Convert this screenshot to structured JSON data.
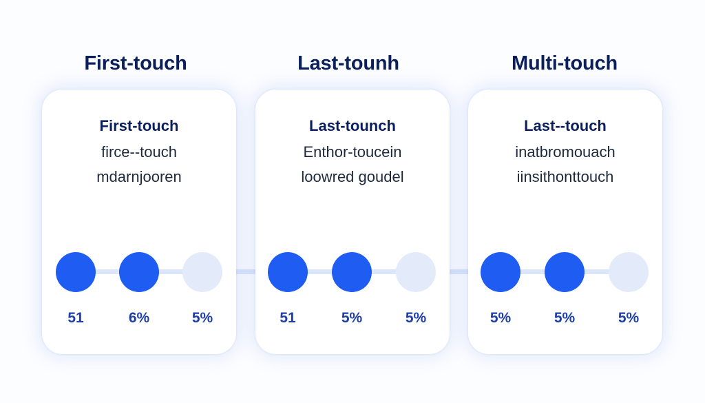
{
  "columns": [
    {
      "title": "First-touch",
      "card": {
        "heading": "First-touch",
        "line1": "firce--touch",
        "line2": "mdarnjooren"
      },
      "steps": [
        {
          "label": "51",
          "filled": true
        },
        {
          "label": "6%",
          "filled": true
        },
        {
          "label": "5%",
          "filled": false
        }
      ]
    },
    {
      "title": "Last-tounh",
      "card": {
        "heading": "Last-tounch",
        "line1": "Enthor-toucein",
        "line2": "loowred goudel"
      },
      "steps": [
        {
          "label": "51",
          "filled": true
        },
        {
          "label": "5%",
          "filled": true
        },
        {
          "label": "5%",
          "filled": false
        }
      ]
    },
    {
      "title": "Multi-touch",
      "card": {
        "heading": "Last--touch",
        "line1": "inatbromouach",
        "line2": "iinsithonttouch"
      },
      "steps": [
        {
          "label": "5%",
          "filled": true
        },
        {
          "label": "5%",
          "filled": true
        },
        {
          "label": "5%",
          "filled": false
        }
      ]
    }
  ],
  "colors": {
    "dot_filled": "#1e5cf2",
    "dot_empty": "#e3ebfb",
    "title": "#0b1f5c",
    "percent": "#1f3fa8"
  }
}
